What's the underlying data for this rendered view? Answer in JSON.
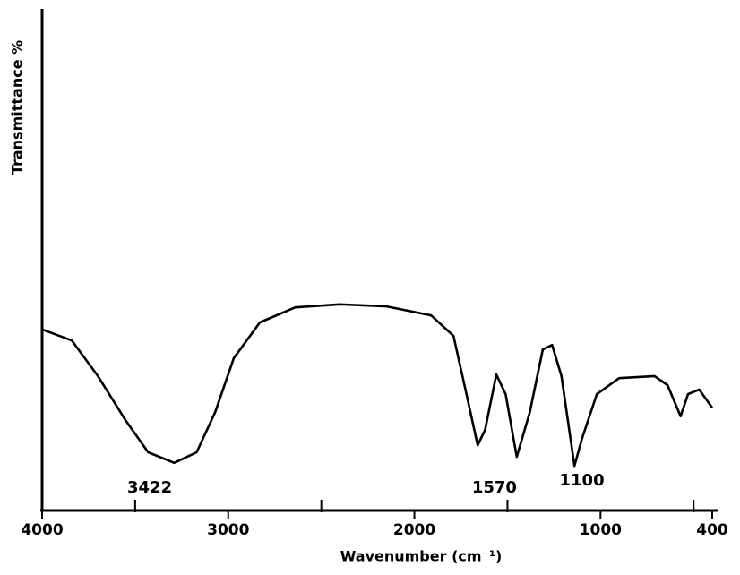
{
  "chart_data": {
    "type": "line",
    "xlabel": "Wavenumber (cm⁻¹)",
    "ylabel": "Transmittance %",
    "x": [
      4000,
      3840,
      3700,
      3550,
      3430,
      3290,
      3170,
      3070,
      2970,
      2830,
      2640,
      2400,
      2150,
      1910,
      1790,
      1720,
      1660,
      1620,
      1560,
      1510,
      1450,
      1380,
      1310,
      1260,
      1210,
      1140,
      1100,
      1020,
      900,
      710,
      640,
      570,
      530,
      470,
      400
    ],
    "series": [
      {
        "name": "Transmittance",
        "color": "#000000",
        "values": [
          36.1,
          33.9,
          26.8,
          17.9,
          11.6,
          9.5,
          11.6,
          19.6,
          30.4,
          37.5,
          40.5,
          41.1,
          40.7,
          38.9,
          34.8,
          23.2,
          13.0,
          16.1,
          27.1,
          23.2,
          10.7,
          19.6,
          32.1,
          33.0,
          26.8,
          8.9,
          14.3,
          23.2,
          26.4,
          26.8,
          25.0,
          18.8,
          23.2,
          24.1,
          20.5
        ]
      }
    ],
    "xlim": [
      4000,
      400
    ],
    "ylim": [
      0,
      100
    ],
    "xticks": [
      4000,
      3000,
      2000,
      1000,
      400
    ],
    "minor_xticks": [
      3500,
      2500,
      1500,
      500
    ],
    "annotations": [
      {
        "text": "3422",
        "x": 3422
      },
      {
        "text": "1570",
        "x": 1570
      },
      {
        "text": "1100",
        "x": 1100
      }
    ]
  }
}
